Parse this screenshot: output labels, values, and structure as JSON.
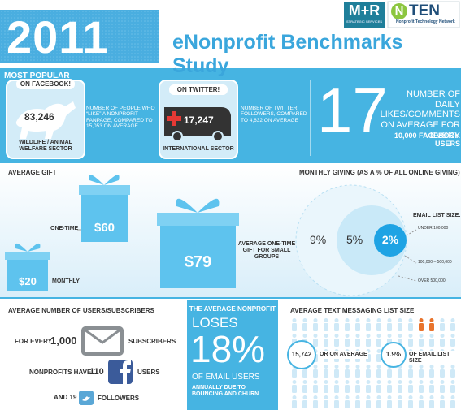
{
  "header": {
    "year": "2011",
    "title": "eNonprofit Benchmarks Study",
    "logos": [
      {
        "name": "M+R",
        "tagline": "STRATEGIC SERVICES"
      },
      {
        "mark": "N",
        "name": "TEN",
        "tagline": "Nonprofit Technology Network"
      }
    ]
  },
  "most_popular": {
    "title": "MOST POPULAR",
    "facebook": {
      "label": "ON FACEBOOK!",
      "value": "83,246",
      "sector": "WILDLIFE / ANIMAL WELFARE SECTOR",
      "description": "NUMBER OF PEOPLE WHO “LIKE” A NONPROFIT FANPAGE, COMPARED TO 15,053 ON AVERAGE"
    },
    "twitter": {
      "label": "ON TWITTER!",
      "value": "17,247",
      "sector": "INTERNATIONAL SECTOR",
      "description": "NUMBER OF TWITTER FOLLOWERS, COMPARED TO 4,632 ON AVERAGE"
    },
    "daily": {
      "value": "17",
      "text": "NUMBER OF DAILY LIKES/COMMENTS ON AVERAGE FOR EVERY",
      "emphasis": "10,000 FACEBOOK USERS"
    }
  },
  "average_gift": {
    "title": "AVERAGE GIFT",
    "one_time": {
      "label": "ONE-TIME",
      "value": "$60"
    },
    "monthly": {
      "label": "MONTHLY",
      "value": "$20"
    },
    "small_groups": {
      "value": "$79",
      "label": "AVERAGE ONE-TIME GIFT FOR SMALL GROUPS"
    }
  },
  "monthly_giving": {
    "title": "MONTHLY GIVING (AS A % OF ALL ONLINE GIVING)",
    "legend_title": "EMAIL LIST SIZE:",
    "groups": [
      {
        "label": "UNDER 100,000",
        "value": "2%"
      },
      {
        "label": "100,000 – 500,000",
        "value": "5%"
      },
      {
        "label": "OVER 500,000",
        "value": "9%"
      }
    ]
  },
  "users": {
    "title": "AVERAGE NUMBER OF USERS/SUBSCRIBERS",
    "rows": [
      {
        "prefix": "FOR EVERY",
        "value": "1,000",
        "suffix": "SUBSCRIBERS"
      },
      {
        "prefix": "NONPROFITS HAVE",
        "value": "110",
        "suffix": "USERS"
      },
      {
        "prefix": "AND 19",
        "suffix": "FOLLOWERS"
      }
    ]
  },
  "churn": {
    "intro": "THE AVERAGE NONPROFIT",
    "verb": "LOSES",
    "value": "18%",
    "object": "OF EMAIL USERS",
    "detail": "ANNUALLY DUE TO BOUNCING AND CHURN"
  },
  "text_messaging": {
    "title": "AVERAGE TEXT MESSAGING LIST SIZE",
    "value": "15,742",
    "middle": "OR ON AVERAGE",
    "percent": "1.9%",
    "suffix": "OF EMAIL LIST SIZE"
  }
}
